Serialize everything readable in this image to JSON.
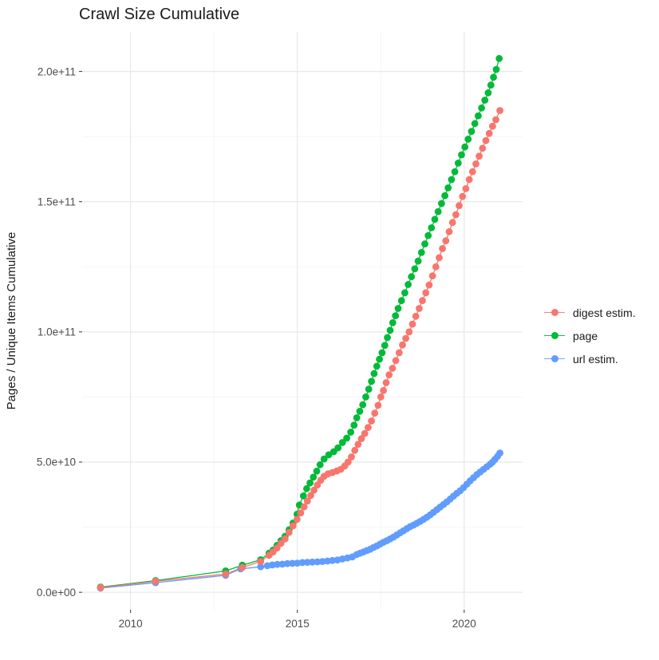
{
  "chart": {
    "title": "Crawl Size Cumulative",
    "ylabel": "Pages / Unique Items Cumulative",
    "xlabel": ""
  },
  "chart_data": {
    "type": "line",
    "title": "Crawl Size Cumulative",
    "xlabel": "",
    "ylabel": "Pages / Unique Items Cumulative",
    "note": "y values stored in billions (1e9 items); axis labels use scientific notation",
    "grid": "on",
    "legend_position": "right",
    "x_domain": [
      2008.55,
      2021.75
    ],
    "y_domain_e9": [
      -6.7,
      215.2
    ],
    "x_ticks": [
      {
        "value": 2010,
        "label": "2010"
      },
      {
        "value": 2015,
        "label": "2015"
      },
      {
        "value": 2020,
        "label": "2020"
      }
    ],
    "y_ticks": [
      {
        "value_e9": 0,
        "label": "0.0e+00"
      },
      {
        "value_e9": 50,
        "label": "5.0e+10"
      },
      {
        "value_e9": 100,
        "label": "1.0e+11"
      },
      {
        "value_e9": 150,
        "label": "1.5e+11"
      },
      {
        "value_e9": 200,
        "label": "2.0e+11"
      }
    ],
    "x_minor": [
      2012.5,
      2017.5
    ],
    "y_minor_e9": [
      25,
      75,
      125,
      175
    ],
    "series": [
      {
        "name": "digest estim.",
        "color": "#F8766D",
        "points": [
          [
            2009.1,
            1.8
          ],
          [
            2010.75,
            4.2
          ],
          [
            2012.85,
            7
          ],
          [
            2013.35,
            9.5
          ],
          [
            2013.9,
            11.8
          ],
          [
            2014.15,
            14.2
          ],
          [
            2014.27,
            15.5
          ],
          [
            2014.39,
            17
          ],
          [
            2014.51,
            18.8
          ],
          [
            2014.63,
            20.5
          ],
          [
            2014.75,
            23
          ],
          [
            2014.87,
            25.5
          ],
          [
            2014.99,
            28
          ],
          [
            2015.1,
            30.5
          ],
          [
            2015.2,
            32.8
          ],
          [
            2015.3,
            35
          ],
          [
            2015.4,
            37.2
          ],
          [
            2015.5,
            39.2
          ],
          [
            2015.6,
            41.2
          ],
          [
            2015.7,
            43
          ],
          [
            2015.8,
            44.5
          ],
          [
            2015.92,
            45.5
          ],
          [
            2016.05,
            46
          ],
          [
            2016.18,
            46.6
          ],
          [
            2016.3,
            47.2
          ],
          [
            2016.42,
            48.5
          ],
          [
            2016.52,
            50
          ],
          [
            2016.62,
            52
          ],
          [
            2016.72,
            54.5
          ],
          [
            2016.82,
            56.8
          ],
          [
            2016.92,
            59
          ],
          [
            2017.02,
            61
          ],
          [
            2017.12,
            63.3
          ],
          [
            2017.22,
            65.8
          ],
          [
            2017.32,
            68.8
          ],
          [
            2017.42,
            71.8
          ],
          [
            2017.5,
            75
          ],
          [
            2017.58,
            77.5
          ],
          [
            2017.66,
            80.5
          ],
          [
            2017.75,
            83.5
          ],
          [
            2017.85,
            86
          ],
          [
            2017.95,
            89
          ],
          [
            2018.05,
            92
          ],
          [
            2018.15,
            95
          ],
          [
            2018.25,
            97.5
          ],
          [
            2018.35,
            100
          ],
          [
            2018.45,
            103
          ],
          [
            2018.55,
            106
          ],
          [
            2018.65,
            109
          ],
          [
            2018.75,
            112
          ],
          [
            2018.85,
            115
          ],
          [
            2018.95,
            118
          ],
          [
            2019.05,
            121.5
          ],
          [
            2019.15,
            125
          ],
          [
            2019.25,
            128.5
          ],
          [
            2019.35,
            132
          ],
          [
            2019.45,
            135
          ],
          [
            2019.55,
            138.5
          ],
          [
            2019.65,
            142
          ],
          [
            2019.75,
            145
          ],
          [
            2019.85,
            148.5
          ],
          [
            2019.95,
            152
          ],
          [
            2020.05,
            155
          ],
          [
            2020.15,
            158.5
          ],
          [
            2020.25,
            161.5
          ],
          [
            2020.35,
            164.5
          ],
          [
            2020.45,
            167.5
          ],
          [
            2020.55,
            170.5
          ],
          [
            2020.65,
            173.5
          ],
          [
            2020.75,
            176.2
          ],
          [
            2020.85,
            179
          ],
          [
            2020.95,
            181.5
          ],
          [
            2021.07,
            185
          ]
        ]
      },
      {
        "name": "page",
        "color": "#00BA38",
        "points": [
          [
            2009.1,
            2
          ],
          [
            2010.75,
            4.5
          ],
          [
            2012.85,
            8.2
          ],
          [
            2013.35,
            10.4
          ],
          [
            2013.9,
            12.5
          ],
          [
            2014.15,
            15
          ],
          [
            2014.27,
            16.2
          ],
          [
            2014.39,
            18
          ],
          [
            2014.51,
            19.8
          ],
          [
            2014.63,
            21.5
          ],
          [
            2014.75,
            24
          ],
          [
            2014.87,
            26.6
          ],
          [
            2014.99,
            30
          ],
          [
            2015.06,
            33.5
          ],
          [
            2015.18,
            37
          ],
          [
            2015.28,
            39.8
          ],
          [
            2015.38,
            42
          ],
          [
            2015.48,
            44.2
          ],
          [
            2015.58,
            46.5
          ],
          [
            2015.68,
            49
          ],
          [
            2015.8,
            51.2
          ],
          [
            2015.94,
            52.8
          ],
          [
            2016.09,
            54
          ],
          [
            2016.22,
            55.5
          ],
          [
            2016.35,
            57.5
          ],
          [
            2016.48,
            59.2
          ],
          [
            2016.6,
            61.5
          ],
          [
            2016.7,
            64.2
          ],
          [
            2016.78,
            67
          ],
          [
            2016.87,
            69.5
          ],
          [
            2016.96,
            72
          ],
          [
            2017.05,
            75
          ],
          [
            2017.14,
            78
          ],
          [
            2017.22,
            81
          ],
          [
            2017.3,
            84
          ],
          [
            2017.38,
            86.8
          ],
          [
            2017.46,
            89.5
          ],
          [
            2017.54,
            92
          ],
          [
            2017.62,
            94.8
          ],
          [
            2017.7,
            97.8
          ],
          [
            2017.78,
            100.6
          ],
          [
            2017.86,
            103.5
          ],
          [
            2017.94,
            106.2
          ],
          [
            2018.02,
            109
          ],
          [
            2018.12,
            112
          ],
          [
            2018.22,
            115
          ],
          [
            2018.32,
            118.2
          ],
          [
            2018.42,
            121.2
          ],
          [
            2018.52,
            124.2
          ],
          [
            2018.62,
            127.2
          ],
          [
            2018.72,
            130.5
          ],
          [
            2018.82,
            133.8
          ],
          [
            2018.92,
            137
          ],
          [
            2019.02,
            140
          ],
          [
            2019.12,
            143.2
          ],
          [
            2019.22,
            146.2
          ],
          [
            2019.32,
            149.3
          ],
          [
            2019.42,
            152.3
          ],
          [
            2019.52,
            155.3
          ],
          [
            2019.62,
            158.5
          ],
          [
            2019.72,
            161.5
          ],
          [
            2019.82,
            164.8
          ],
          [
            2019.92,
            168
          ],
          [
            2020.02,
            171
          ],
          [
            2020.12,
            174
          ],
          [
            2020.22,
            177
          ],
          [
            2020.32,
            180
          ],
          [
            2020.42,
            183
          ],
          [
            2020.52,
            186
          ],
          [
            2020.62,
            189
          ],
          [
            2020.72,
            191.8
          ],
          [
            2020.8,
            194.8
          ],
          [
            2020.88,
            197.8
          ],
          [
            2020.96,
            200.8
          ],
          [
            2021.05,
            205
          ]
        ]
      },
      {
        "name": "url estim.",
        "color": "#619CFF",
        "points": [
          [
            2009.1,
            1.6
          ],
          [
            2010.75,
            3.7
          ],
          [
            2012.85,
            6.5
          ],
          [
            2013.3,
            9
          ],
          [
            2013.9,
            9.8
          ],
          [
            2014.1,
            10.2
          ],
          [
            2014.25,
            10.5
          ],
          [
            2014.4,
            10.7
          ],
          [
            2014.55,
            10.8
          ],
          [
            2014.7,
            11
          ],
          [
            2014.85,
            11.1
          ],
          [
            2015,
            11.2
          ],
          [
            2015.15,
            11.4
          ],
          [
            2015.3,
            11.5
          ],
          [
            2015.45,
            11.6
          ],
          [
            2015.6,
            11.7
          ],
          [
            2015.75,
            11.8
          ],
          [
            2015.9,
            12
          ],
          [
            2016.05,
            12.2
          ],
          [
            2016.2,
            12.4
          ],
          [
            2016.35,
            12.8
          ],
          [
            2016.5,
            13.2
          ],
          [
            2016.65,
            13.6
          ],
          [
            2016.78,
            14.5
          ],
          [
            2016.88,
            15
          ],
          [
            2016.98,
            15.5
          ],
          [
            2017.08,
            16
          ],
          [
            2017.18,
            16.5
          ],
          [
            2017.28,
            17.2
          ],
          [
            2017.38,
            17.8
          ],
          [
            2017.48,
            18.5
          ],
          [
            2017.58,
            19.2
          ],
          [
            2017.68,
            19.8
          ],
          [
            2017.78,
            20.5
          ],
          [
            2017.88,
            21.2
          ],
          [
            2017.98,
            22
          ],
          [
            2018.08,
            22.8
          ],
          [
            2018.18,
            23.6
          ],
          [
            2018.28,
            24.4
          ],
          [
            2018.38,
            25.2
          ],
          [
            2018.48,
            25.8
          ],
          [
            2018.58,
            26.5
          ],
          [
            2018.68,
            27.2
          ],
          [
            2018.78,
            28
          ],
          [
            2018.88,
            28.8
          ],
          [
            2018.98,
            29.7
          ],
          [
            2019.08,
            30.7
          ],
          [
            2019.18,
            31.7
          ],
          [
            2019.28,
            32.7
          ],
          [
            2019.38,
            33.7
          ],
          [
            2019.48,
            34.7
          ],
          [
            2019.58,
            35.8
          ],
          [
            2019.68,
            36.9
          ],
          [
            2019.78,
            38
          ],
          [
            2019.88,
            39
          ],
          [
            2019.98,
            40.2
          ],
          [
            2020.08,
            41.5
          ],
          [
            2020.18,
            42.8
          ],
          [
            2020.28,
            44
          ],
          [
            2020.38,
            45.2
          ],
          [
            2020.48,
            46.2
          ],
          [
            2020.58,
            47.2
          ],
          [
            2020.68,
            48.2
          ],
          [
            2020.78,
            49.2
          ],
          [
            2020.85,
            50
          ],
          [
            2020.92,
            51
          ],
          [
            2021,
            52.2
          ],
          [
            2021.07,
            53.5
          ]
        ]
      }
    ]
  },
  "style": {
    "grid_major_color": "#E8E8E8",
    "grid_minor_color": "#F3F3F3",
    "tick_mark_color": "#333333",
    "tick_label_color": "#4D4D4D"
  }
}
